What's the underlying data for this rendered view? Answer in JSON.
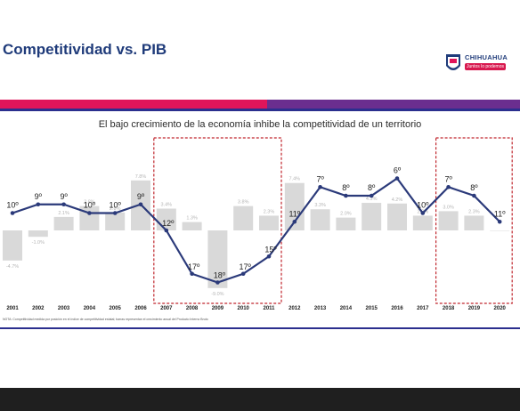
{
  "header": {
    "title": "Competitividad vs. PIB"
  },
  "logo": {
    "name": "CHIHUAHUA",
    "tagline": "Juntos lo podemos",
    "icon": "state-shield-icon"
  },
  "colors": {
    "pink": "#e0155a",
    "purple": "#6b2e8f",
    "navy": "#1f3b7a",
    "line": "#2b3a7a",
    "bar": "#d9d9d9",
    "highlight_box": "#c0262d"
  },
  "chart_data": {
    "type": "line",
    "title": "El bajo crecimiento de la economía inhibe la competitividad de un territorio",
    "categories": [
      "2001",
      "2002",
      "2003",
      "2004",
      "2005",
      "2006",
      "2007",
      "2008",
      "2009",
      "2010",
      "2011",
      "2012",
      "2013",
      "2014",
      "2015",
      "2016",
      "2017",
      "2018",
      "2019",
      "2020"
    ],
    "series": [
      {
        "values": [
          10,
          9,
          9,
          10,
          10,
          9,
          12,
          17,
          18,
          17,
          15,
          11,
          7,
          8,
          8,
          6,
          10,
          7,
          8,
          11
        ],
        "labels": [
          "10º",
          "9º",
          "9º",
          "10º",
          "10º",
          "9º",
          "12º",
          "17º",
          "18º",
          "17º",
          "15º",
          "11º",
          "7º",
          "8º",
          "8º",
          "6º",
          "10º",
          "7º",
          "8º",
          "11º"
        ],
        "y_inverted": true,
        "ylim": [
          4,
          19
        ]
      },
      {
        "values": [
          -4.7,
          -1.0,
          2.1,
          3.8,
          2.8,
          7.8,
          3.4,
          1.3,
          -9.0,
          3.8,
          2.3,
          7.4,
          3.3,
          2.0,
          4.3,
          4.2,
          2.3,
          3.0,
          2.3,
          0.0
        ],
        "labels": [
          "-4.7%",
          "-1.0%",
          "2.1%",
          "3.8%",
          "2.8%",
          "7.8%",
          "3.4%",
          "1.3%",
          "-9.0%",
          "3.8%",
          "2.3%",
          "7.4%",
          "3.3%",
          "2.0%",
          "4.3%",
          "4.2%",
          "2.3%",
          "3.0%",
          "2.3%",
          ""
        ]
      }
    ],
    "highlights": [
      {
        "from": "2007",
        "to": "2011"
      },
      {
        "from": "2018",
        "to": "2020"
      }
    ],
    "footnote": "NOTA: Competitividad medida por posición en el índice de competitividad estatal; barras representan el crecimiento anual del Producto Interno Bruto"
  }
}
